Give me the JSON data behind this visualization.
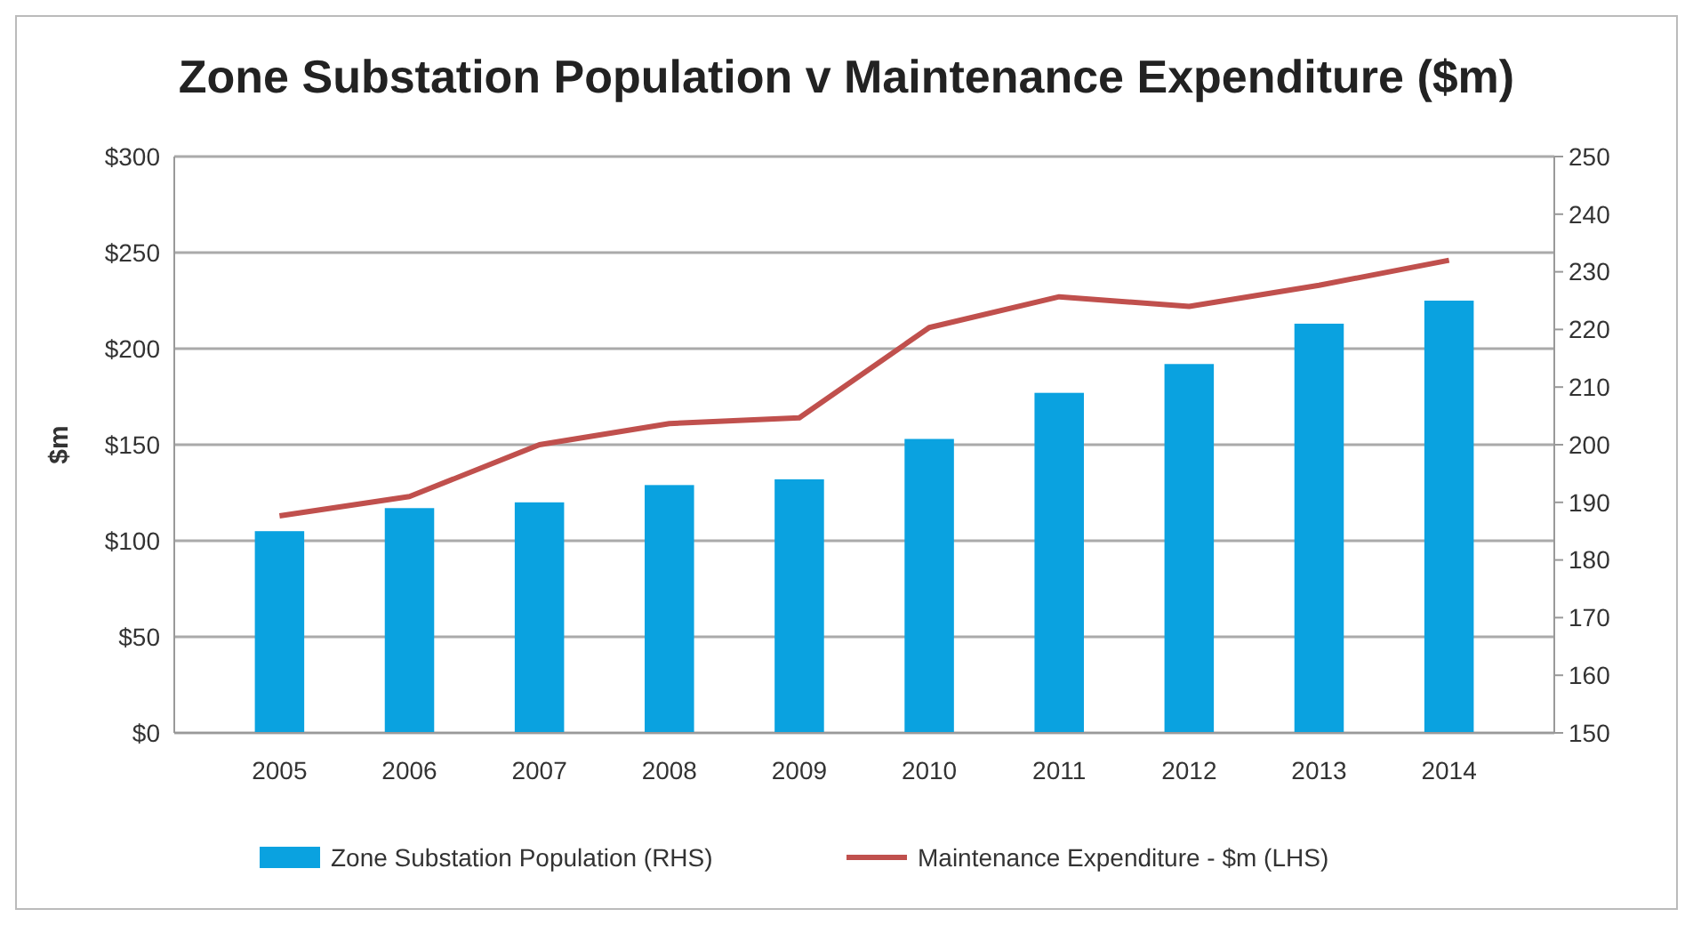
{
  "chart_data": {
    "type": "bar",
    "title": "Zone Substation Population v Maintenance Expenditure ($m)",
    "ylabel": "$m",
    "categories": [
      "2005",
      "2006",
      "2007",
      "2008",
      "2009",
      "2010",
      "2011",
      "2012",
      "2013",
      "2014"
    ],
    "series": [
      {
        "name": "Zone Substation Population (RHS)",
        "axis": "y2",
        "color": "#0aa2e0",
        "values": [
          185,
          189,
          190,
          193,
          194,
          201,
          209,
          214,
          221,
          225
        ]
      },
      {
        "name": "Maintenance Expenditure - $m (LHS)",
        "type": "line",
        "axis": "y",
        "color": "#c0504d",
        "values": [
          113,
          123,
          150,
          161,
          164,
          211,
          227,
          222,
          233,
          246
        ]
      }
    ],
    "ylim": [
      0,
      300
    ],
    "yticks": [
      {
        "value": 0,
        "label": "$0"
      },
      {
        "value": 50,
        "label": "$50"
      },
      {
        "value": 100,
        "label": "$100"
      },
      {
        "value": 150,
        "label": "$150"
      },
      {
        "value": 200,
        "label": "$200"
      },
      {
        "value": 250,
        "label": "$250"
      },
      {
        "value": 300,
        "label": "$300"
      }
    ],
    "y2lim": [
      150,
      250
    ],
    "y2ticks": [
      150,
      160,
      170,
      180,
      190,
      200,
      210,
      220,
      230,
      240,
      250
    ],
    "grid": "y",
    "legend": "bottom",
    "marker": "none",
    "line_style": "solid"
  }
}
